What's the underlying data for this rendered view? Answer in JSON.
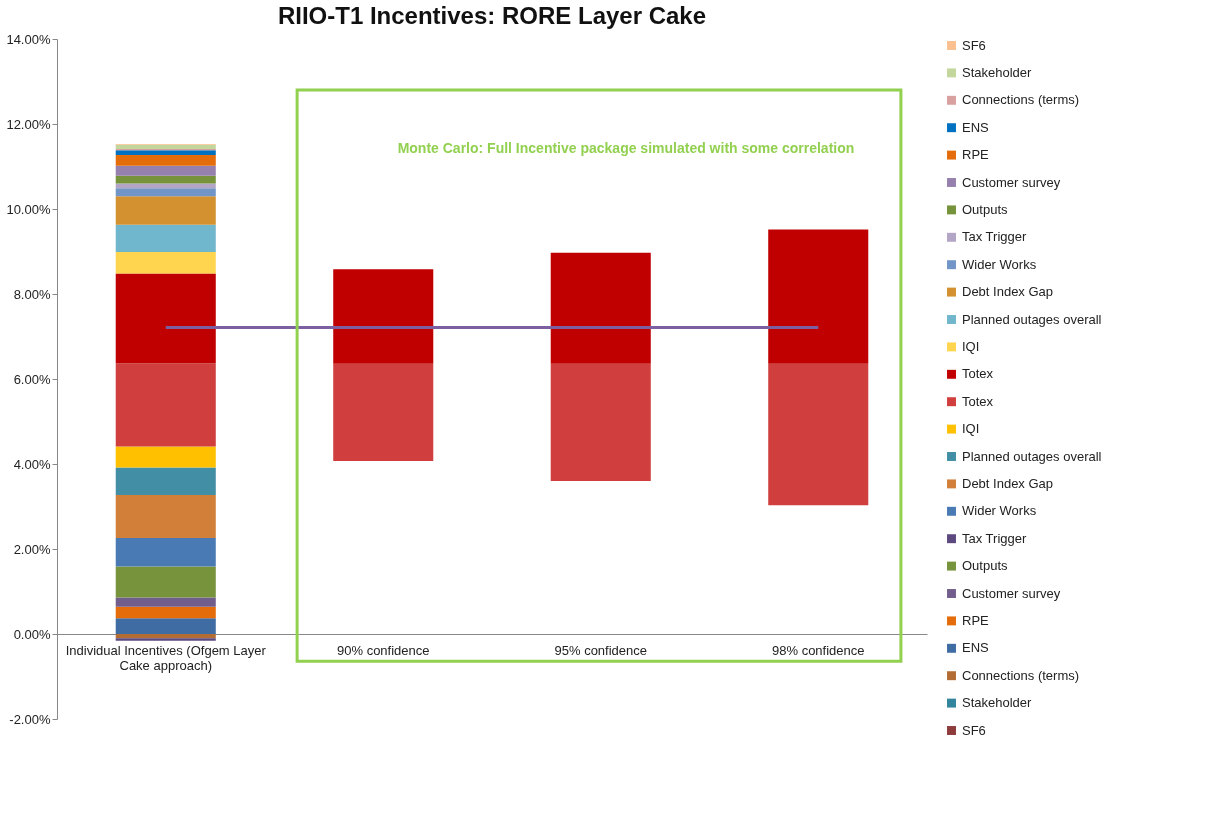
{
  "chart_data": {
    "type": "bar",
    "stacked": true,
    "title": "RIIO-T1 Incentives: RORE Layer Cake",
    "categories": [
      "Individual Incentives (Ofgem Layer Cake approach)",
      "90% confidence",
      "95% confidence",
      "98% confidence"
    ],
    "ylim": [
      -2,
      14
    ],
    "yticks": [
      {
        "value": -2,
        "label": "-2.00%"
      },
      {
        "value": 0,
        "label": "0.00%"
      },
      {
        "value": 2,
        "label": "2.00%"
      },
      {
        "value": 4,
        "label": "4.00%"
      },
      {
        "value": 6,
        "label": "6.00%"
      },
      {
        "value": 8,
        "label": "8.00%"
      },
      {
        "value": 10,
        "label": "10.00%"
      },
      {
        "value": 12,
        "label": "12.00%"
      },
      {
        "value": 14,
        "label": "14.00%"
      }
    ],
    "legend": "right",
    "annotations": [
      "Monte Carlo: Full Incentive package simulated with some correlation"
    ],
    "series": [
      {
        "name": "SF6",
        "color": "#8e3b3b",
        "values": [
          null,
          null,
          null,
          null
        ]
      },
      {
        "name": "Stakeholder",
        "color": "#31859c",
        "values": [
          null,
          null,
          null,
          null
        ]
      },
      {
        "name": "Connections (terms)",
        "color": "#b46c35",
        "values": [
          -0.1,
          null,
          null,
          null
        ]
      },
      {
        "name": "ENS",
        "color": "#3f6ca3",
        "values": [
          0.37,
          null,
          null,
          null
        ]
      },
      {
        "name": "RPE",
        "color": "#e46c0a",
        "values": [
          0.27,
          null,
          null,
          null
        ]
      },
      {
        "name": "Customer survey",
        "color": "#725e8d",
        "values": [
          0.22,
          null,
          null,
          null
        ]
      },
      {
        "name": "Outputs",
        "color": "#77933c",
        "values": [
          0.73,
          null,
          null,
          null
        ]
      },
      {
        "name": "Tax Trigger",
        "color": "#5c4a7f",
        "values": [
          -0.06,
          null,
          null,
          null
        ]
      },
      {
        "name": "Wider Works",
        "color": "#4a7ab4",
        "values": [
          0.67,
          null,
          null,
          null
        ]
      },
      {
        "name": "Debt Index Gap",
        "color": "#d27f3a",
        "values": [
          1.01,
          null,
          null,
          null
        ]
      },
      {
        "name": "Planned outages overall",
        "color": "#418ea5",
        "values": [
          0.65,
          null,
          null,
          null
        ]
      },
      {
        "name": "IQI",
        "color": "#ffc000",
        "values": [
          0.49,
          null,
          null,
          null
        ]
      },
      {
        "name": "Totex",
        "color": "#d03e3e",
        "values": [
          1.96,
          2.29,
          2.76,
          3.33
        ],
        "base": [
          null,
          4.07,
          3.6,
          3.03
        ]
      },
      {
        "name": "Totex",
        "color": "#c00000",
        "values": [
          2.11,
          2.22,
          2.61,
          3.16
        ]
      },
      {
        "name": "IQI",
        "color": "#ffd54f",
        "values": [
          0.51,
          null,
          null,
          null
        ]
      },
      {
        "name": "Planned outages overall",
        "color": "#70b6cc",
        "values": [
          0.64,
          null,
          null,
          null
        ]
      },
      {
        "name": "Debt Index Gap",
        "color": "#d39130",
        "values": [
          0.67,
          null,
          null,
          null
        ]
      },
      {
        "name": "Wider Works",
        "color": "#7295c7",
        "values": [
          0.19,
          null,
          null,
          null
        ]
      },
      {
        "name": "Tax Trigger",
        "color": "#b2a5c6",
        "values": [
          0.11,
          null,
          null,
          null
        ]
      },
      {
        "name": "Outputs",
        "color": "#76933c",
        "values": [
          0.18,
          null,
          null,
          null
        ]
      },
      {
        "name": "Customer survey",
        "color": "#9680ad",
        "values": [
          0.24,
          null,
          null,
          null
        ]
      },
      {
        "name": "RPE",
        "color": "#e46c0a",
        "values": [
          0.25,
          null,
          null,
          null
        ]
      },
      {
        "name": "ENS",
        "color": "#0070c0",
        "values": [
          0.11,
          null,
          null,
          null
        ]
      },
      {
        "name": "Connections (terms)",
        "color": "#d9a0a0",
        "values": [
          0.03,
          null,
          null,
          null
        ]
      },
      {
        "name": "Stakeholder",
        "color": "#c3d69b",
        "values": [
          0.1,
          null,
          null,
          null
        ]
      },
      {
        "name": "SF6",
        "color": "#fac090",
        "values": [
          0.02,
          null,
          null,
          null
        ]
      },
      {
        "type": "line",
        "color": "#7b5fa0",
        "values": [
          7.21,
          7.21,
          7.21,
          7.21
        ]
      }
    ]
  }
}
